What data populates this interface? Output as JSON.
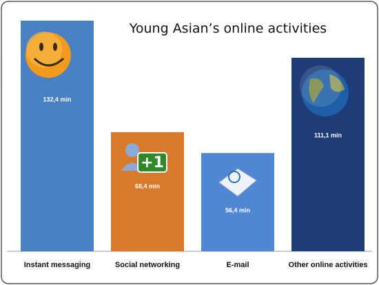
{
  "chart_data": {
    "type": "bar",
    "title": "Young Asian’s online activities",
    "categories": [
      "Instant messaging",
      "Social networking",
      "E-mail",
      "Other online activities"
    ],
    "values": [
      132.4,
      68.4,
      56.4,
      111.1
    ],
    "value_labels": [
      "132,4 min",
      "68,4 min",
      "56,4 min",
      "111,1 min"
    ],
    "colors": [
      "#4a80c4",
      "#d97a2b",
      "#4f87d2",
      "#1e3d78"
    ]
  }
}
